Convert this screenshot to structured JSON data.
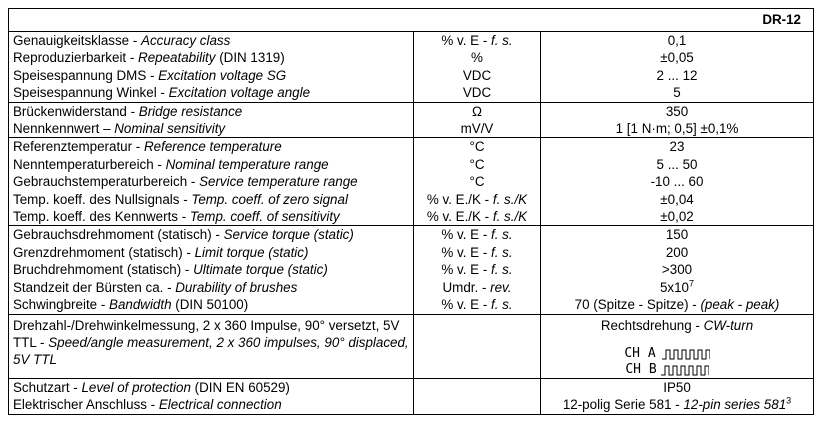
{
  "header": {
    "model": "DR-12"
  },
  "groups": [
    {
      "rows": [
        {
          "property": [
            {
              "text": "Genauigkeitsklasse - "
            },
            {
              "text": "Accuracy class",
              "style": "italic"
            }
          ],
          "unit": [
            {
              "text": "% v. E - "
            },
            {
              "text": "f. s.",
              "style": "italic"
            }
          ],
          "value": [
            {
              "text": "0,1"
            }
          ]
        },
        {
          "property": [
            {
              "text": "Reproduzierbarkeit - "
            },
            {
              "text": "Repeatability",
              "style": "italic"
            },
            {
              "text": " (DIN 1319)"
            }
          ],
          "unit": [
            {
              "text": "%"
            }
          ],
          "value": [
            {
              "text": "±0,05"
            }
          ]
        },
        {
          "property": [
            {
              "text": "Speisespannung DMS - "
            },
            {
              "text": "Excitation voltage SG",
              "style": "italic"
            }
          ],
          "unit": [
            {
              "text": "VDC"
            }
          ],
          "value": [
            {
              "text": "2 ... 12"
            }
          ]
        },
        {
          "property": [
            {
              "text": "Speisespannung Winkel - "
            },
            {
              "text": "Excitation voltage angle",
              "style": "italic"
            }
          ],
          "unit": [
            {
              "text": "VDC"
            }
          ],
          "value": [
            {
              "text": "5"
            }
          ]
        }
      ]
    },
    {
      "rows": [
        {
          "property": [
            {
              "text": "Brückenwiderstand - "
            },
            {
              "text": "Bridge resistance",
              "style": "italic"
            }
          ],
          "unit": [
            {
              "text": "Ω"
            }
          ],
          "value": [
            {
              "text": "350"
            }
          ]
        },
        {
          "property": [
            {
              "text": "Nennkennwert – "
            },
            {
              "text": "Nominal sensitivity",
              "style": "italic"
            }
          ],
          "unit": [
            {
              "text": "mV/V"
            }
          ],
          "value": [
            {
              "text": "1 [1 N·m; 0,5] ±0,1%"
            }
          ]
        }
      ]
    },
    {
      "rows": [
        {
          "property": [
            {
              "text": "Referenztemperatur - "
            },
            {
              "text": "Reference temperature",
              "style": "italic"
            }
          ],
          "unit": [
            {
              "text": "°C"
            }
          ],
          "value": [
            {
              "text": "23"
            }
          ]
        },
        {
          "property": [
            {
              "text": "Nenntemperaturbereich - "
            },
            {
              "text": "Nominal temperature range",
              "style": "italic"
            }
          ],
          "unit": [
            {
              "text": "°C"
            }
          ],
          "value": [
            {
              "text": "5 ... 50"
            }
          ]
        },
        {
          "property": [
            {
              "text": "Gebrauchstemperaturbereich - "
            },
            {
              "text": "Service temperature range",
              "style": "italic"
            }
          ],
          "unit": [
            {
              "text": "°C"
            }
          ],
          "value": [
            {
              "text": "-10 ... 60"
            }
          ]
        },
        {
          "property": [
            {
              "text": "Temp. koeff. des Nullsignals - "
            },
            {
              "text": "Temp. coeff. of zero signal",
              "style": "italic"
            }
          ],
          "unit": [
            {
              "text": "% v. E./K - "
            },
            {
              "text": "f. s./K",
              "style": "italic"
            }
          ],
          "value": [
            {
              "text": "±0,04"
            }
          ]
        },
        {
          "property": [
            {
              "text": "Temp. koeff. des Kennwerts - "
            },
            {
              "text": "Temp. coeff. of sensitivity",
              "style": "italic"
            }
          ],
          "unit": [
            {
              "text": "% v. E./K - "
            },
            {
              "text": "f. s./K",
              "style": "italic"
            }
          ],
          "value": [
            {
              "text": "±0,02"
            }
          ]
        }
      ]
    },
    {
      "rows": [
        {
          "property": [
            {
              "text": "Gebrauchsdrehmoment (statisch) - "
            },
            {
              "text": "Service torque (static)",
              "style": "italic"
            }
          ],
          "unit": [
            {
              "text": "% v. E - "
            },
            {
              "text": "f. s.",
              "style": "italic"
            }
          ],
          "value": [
            {
              "text": "150"
            }
          ]
        },
        {
          "property": [
            {
              "text": "Grenzdrehmoment (statisch) - "
            },
            {
              "text": "Limit torque (static)",
              "style": "italic"
            }
          ],
          "unit": [
            {
              "text": "% v. E - "
            },
            {
              "text": "f. s.",
              "style": "italic"
            }
          ],
          "value": [
            {
              "text": "200"
            }
          ]
        },
        {
          "property": [
            {
              "text": "Bruchdrehmoment (statisch) - "
            },
            {
              "text": "Ultimate torque (static)",
              "style": "italic"
            }
          ],
          "unit": [
            {
              "text": "% v. E - "
            },
            {
              "text": "f. s.",
              "style": "italic"
            }
          ],
          "value": [
            {
              "text": ">300"
            }
          ]
        },
        {
          "property": [
            {
              "text": "Standzeit der Bürsten ca. - "
            },
            {
              "text": "Durability of brushes",
              "style": "italic"
            }
          ],
          "unit": [
            {
              "text": "Umdr. - "
            },
            {
              "text": "rev.",
              "style": "italic"
            }
          ],
          "value": [
            {
              "text": "5x10"
            },
            {
              "text": "7",
              "style": "sup"
            }
          ]
        },
        {
          "property": [
            {
              "text": "Schwingbreite - "
            },
            {
              "text": "Bandwidth",
              "style": "italic"
            },
            {
              "text": " (DIN 50100)"
            }
          ],
          "unit": [
            {
              "text": "% v. E - "
            },
            {
              "text": "f. s.",
              "style": "italic"
            }
          ],
          "value": [
            {
              "text": "70 (Spitze - Spitze) - "
            },
            {
              "text": "(peak - peak)",
              "style": "italic"
            }
          ]
        }
      ]
    },
    {
      "rows": [
        {
          "property": [
            {
              "text": "Drehzahl-/Drehwinkelmessung, 2 x 360 Impulse, 90° versetzt, 5V TTL - "
            },
            {
              "text": "Speed/angle measurement, 2 x 360 impulses, 90° displaced, 5V TTL",
              "style": "italic"
            }
          ],
          "unit": [],
          "value": [
            {
              "text": "Rechtsdrehung - "
            },
            {
              "text": "CW-turn",
              "style": "italic"
            }
          ],
          "channels": [
            "CH A",
            "CH B"
          ]
        }
      ]
    },
    {
      "rows": [
        {
          "property": [
            {
              "text": "Schutzart - "
            },
            {
              "text": "Level of protection",
              "style": "italic"
            },
            {
              "text": " (DIN EN 60529)"
            }
          ],
          "unit": [],
          "value": [
            {
              "text": "IP50"
            }
          ]
        },
        {
          "property": [
            {
              "text": "Elektrischer Anschluss - "
            },
            {
              "text": "Electrical connection",
              "style": "italic"
            }
          ],
          "unit": [],
          "value": [
            {
              "text": "12-polig Serie 581 - "
            },
            {
              "text": "12-pin series 581",
              "style": "italic"
            },
            {
              "text": "3",
              "style": "sup"
            }
          ]
        }
      ]
    }
  ]
}
